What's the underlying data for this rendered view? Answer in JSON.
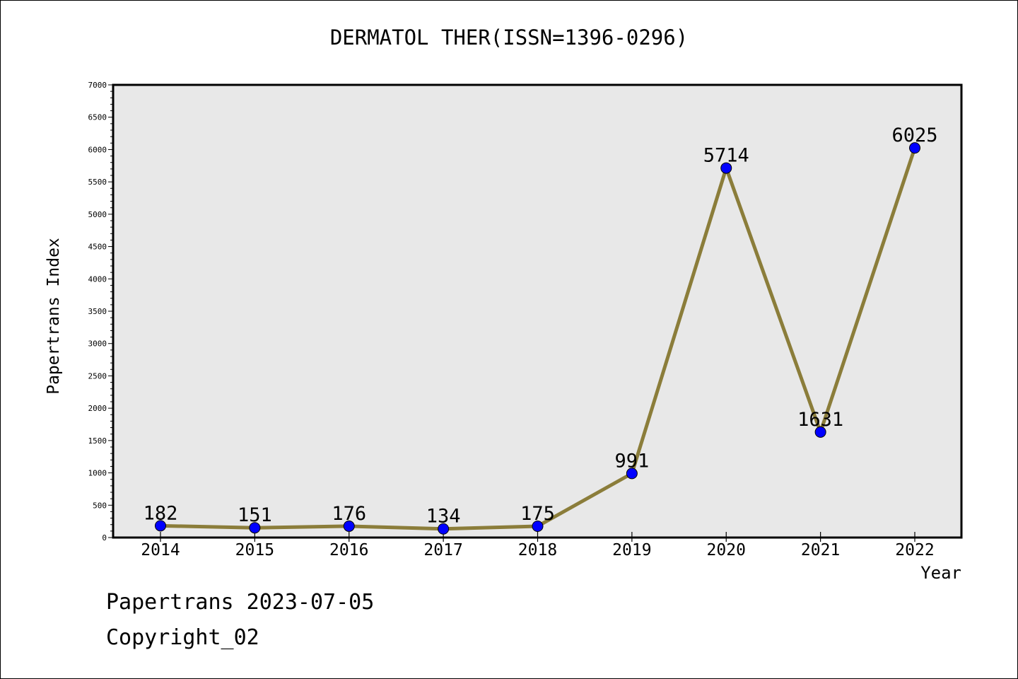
{
  "chart_data": {
    "type": "line",
    "title": "DERMATOL THER(ISSN=1396-0296)",
    "xlabel": "Year",
    "ylabel": "Papertrans Index",
    "categories": [
      "2014",
      "2015",
      "2016",
      "2017",
      "2018",
      "2019",
      "2020",
      "2021",
      "2022"
    ],
    "series": [
      {
        "values": [
          182,
          151,
          176,
          134,
          175,
          991,
          5714,
          1631,
          6025
        ]
      }
    ],
    "data_labels": [
      "182",
      "151",
      "176",
      "134",
      "175",
      "991",
      "5714",
      "1631",
      "6025"
    ],
    "ylim": [
      0,
      7000
    ],
    "yticks": [
      0,
      500,
      1000,
      1500,
      2000,
      2500,
      3000,
      3500,
      4000,
      4500,
      5000,
      5500,
      6000,
      6500,
      7000
    ],
    "grid": false,
    "legend": "none",
    "colors": {
      "line": "#8b7d3a",
      "marker": "#0000ff",
      "plot_background": "#e8e8e8"
    }
  },
  "footer": {
    "line1": "Papertrans 2023-07-05",
    "line2": "Copyright_02"
  }
}
